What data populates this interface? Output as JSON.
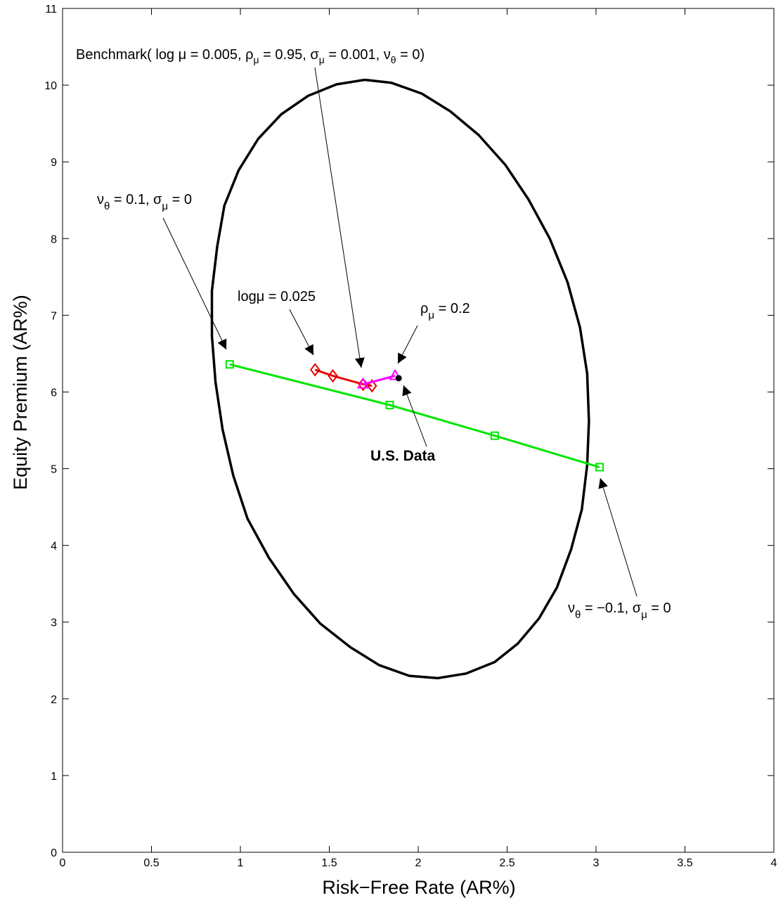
{
  "chart_data": {
    "type": "line",
    "xlabel": "Risk−Free Rate (AR%)",
    "ylabel": "Equity Premium (AR%)",
    "xlim": [
      0,
      4
    ],
    "ylim": [
      0,
      11
    ],
    "xticks": [
      0,
      0.5,
      1,
      1.5,
      2,
      2.5,
      3,
      3.5,
      4
    ],
    "yticks": [
      0,
      1,
      2,
      3,
      4,
      5,
      6,
      7,
      8,
      9,
      10,
      11
    ],
    "grid": false,
    "colors": {
      "ellipse": "#000000",
      "green": "#00e600",
      "red": "#e60000",
      "magenta": "#ff00ff",
      "data_point": "#000000"
    },
    "ellipse": [
      [
        1.7,
        10.07
      ],
      [
        1.85,
        10.03
      ],
      [
        2.02,
        9.89
      ],
      [
        2.18,
        9.66
      ],
      [
        2.34,
        9.35
      ],
      [
        2.49,
        8.96
      ],
      [
        2.62,
        8.51
      ],
      [
        2.74,
        8.0
      ],
      [
        2.84,
        7.43
      ],
      [
        2.91,
        6.84
      ],
      [
        2.95,
        6.24
      ],
      [
        2.96,
        5.62
      ],
      [
        2.95,
        5.05
      ],
      [
        2.92,
        4.47
      ],
      [
        2.86,
        3.95
      ],
      [
        2.78,
        3.45
      ],
      [
        2.68,
        3.05
      ],
      [
        2.56,
        2.72
      ],
      [
        2.43,
        2.48
      ],
      [
        2.27,
        2.33
      ],
      [
        2.11,
        2.27
      ],
      [
        1.95,
        2.3
      ],
      [
        1.78,
        2.44
      ],
      [
        1.62,
        2.67
      ],
      [
        1.45,
        2.98
      ],
      [
        1.3,
        3.37
      ],
      [
        1.16,
        3.84
      ],
      [
        1.04,
        4.35
      ],
      [
        0.96,
        4.91
      ],
      [
        0.9,
        5.51
      ],
      [
        0.86,
        6.13
      ],
      [
        0.84,
        6.73
      ],
      [
        0.84,
        7.32
      ],
      [
        0.87,
        7.9
      ],
      [
        0.91,
        8.43
      ],
      [
        0.99,
        8.89
      ],
      [
        1.1,
        9.3
      ],
      [
        1.23,
        9.62
      ],
      [
        1.38,
        9.86
      ],
      [
        1.54,
        10.01
      ],
      [
        1.7,
        10.07
      ]
    ],
    "series": [
      {
        "color": "#00e600",
        "marker": "square",
        "x": [
          0.94,
          1.84,
          2.43,
          3.02
        ],
        "y": [
          6.36,
          5.83,
          5.43,
          5.02
        ]
      },
      {
        "color": "#e60000",
        "marker": "diamond",
        "x": [
          1.42,
          1.52,
          1.69,
          1.74
        ],
        "y": [
          6.29,
          6.21,
          6.1,
          6.08
        ]
      },
      {
        "color": "#ff00ff",
        "marker": "triangle",
        "x": [
          1.69,
          1.87
        ],
        "y": [
          6.1,
          6.21
        ]
      }
    ],
    "data_point": {
      "x": 1.89,
      "y": 6.18
    },
    "annotations": {
      "benchmark": "Benchmark( log μ = 0.005, ρ_μ = 0.95, σ_μ = 0.001, ν_θ = 0)",
      "nu_pos": "ν_θ = 0.1, σ_μ = 0",
      "logmu": "logμ = 0.025",
      "rho": "ρ_μ = 0.2",
      "us_data": "U.S. Data",
      "nu_neg": "ν_θ = −0.1, σ_μ = 0"
    }
  }
}
